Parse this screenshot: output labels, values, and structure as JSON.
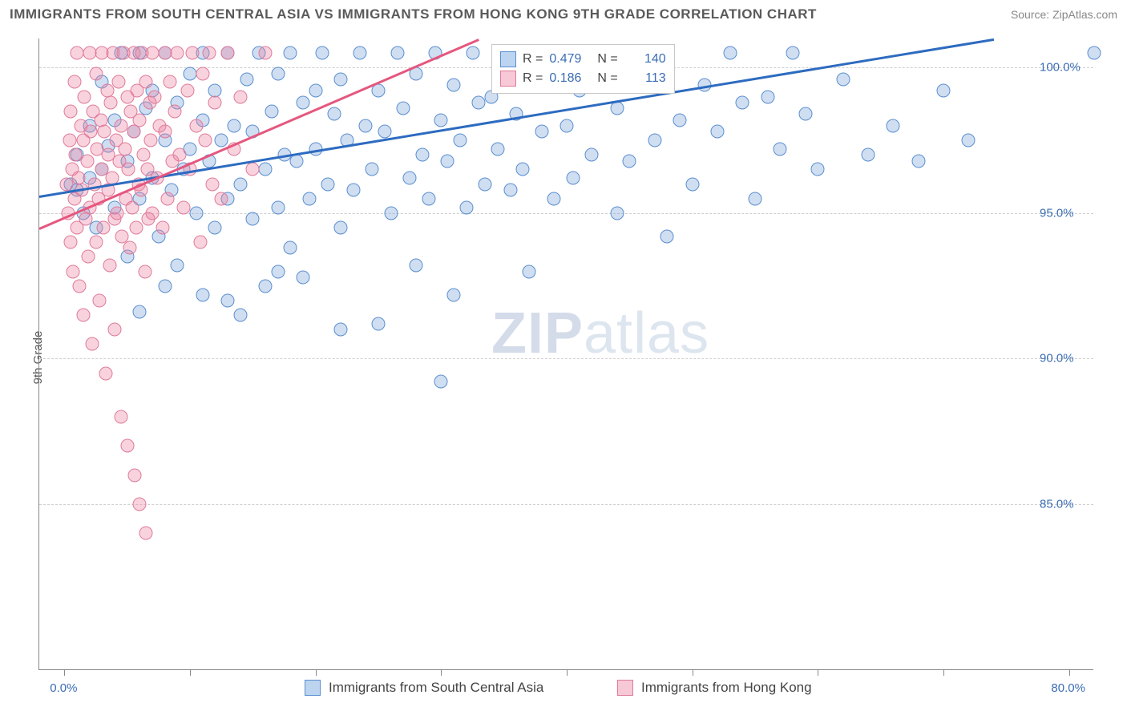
{
  "header": {
    "title": "IMMIGRANTS FROM SOUTH CENTRAL ASIA VS IMMIGRANTS FROM HONG KONG 9TH GRADE CORRELATION CHART",
    "source": "Source: ZipAtlas.com"
  },
  "watermark": {
    "part1": "ZIP",
    "part2": "atlas"
  },
  "chart": {
    "type": "scatter",
    "ylabel": "9th Grade",
    "background_color": "#ffffff",
    "grid_color": "#cfcfcf",
    "axis_color": "#888888",
    "tick_label_color": "#3b6db4",
    "label_color": "#5a5a5a",
    "label_fontsize": 15,
    "tick_fontsize": 15,
    "marker_radius": 8.5,
    "marker_opacity": 0.55,
    "trend_line_width": 3,
    "xlim": [
      -2,
      82
    ],
    "ylim": [
      79.3,
      101
    ],
    "xticks": [
      0,
      10,
      20,
      30,
      40,
      50,
      60,
      70,
      80
    ],
    "xtick_labels": {
      "0": "0.0%",
      "80": "80.0%"
    },
    "yticks": [
      85,
      90,
      95,
      100
    ],
    "ytick_labels": {
      "85": "85.0%",
      "90": "90.0%",
      "95": "95.0%",
      "100": "100.0%"
    },
    "series": [
      {
        "name": "Immigrants from South Central Asia",
        "marker_fill": "rgba(120,160,215,0.35)",
        "marker_stroke": "#5a8fd0",
        "trend_color": "#2d6bc0",
        "legend_swatch_fill": "#bcd4ef",
        "legend_swatch_stroke": "#5a8fd0",
        "R": "0.479",
        "N": "140",
        "trend": {
          "x1": -2,
          "y1": 95.6,
          "x2": 74,
          "y2": 101
        },
        "points": [
          [
            0.5,
            96
          ],
          [
            1,
            95.8
          ],
          [
            1,
            97
          ],
          [
            1.5,
            95
          ],
          [
            2,
            96.2
          ],
          [
            2,
            98
          ],
          [
            2.5,
            94.5
          ],
          [
            3,
            96.5
          ],
          [
            3,
            99.5
          ],
          [
            3.5,
            97.3
          ],
          [
            4,
            95.2
          ],
          [
            4,
            98.2
          ],
          [
            4.5,
            100.5
          ],
          [
            5,
            96.8
          ],
          [
            5,
            93.5
          ],
          [
            5.5,
            97.8
          ],
          [
            6,
            100.5
          ],
          [
            6,
            95.5
          ],
          [
            6.5,
            98.6
          ],
          [
            7,
            96.2
          ],
          [
            7,
            99.2
          ],
          [
            7.5,
            94.2
          ],
          [
            8,
            97.5
          ],
          [
            8,
            100.5
          ],
          [
            8.5,
            95.8
          ],
          [
            9,
            98.8
          ],
          [
            9,
            93.2
          ],
          [
            9.5,
            96.5
          ],
          [
            10,
            99.8
          ],
          [
            10,
            97.2
          ],
          [
            10.5,
            95.0
          ],
          [
            11,
            98.2
          ],
          [
            11,
            100.5
          ],
          [
            11.5,
            96.8
          ],
          [
            12,
            94.5
          ],
          [
            12,
            99.2
          ],
          [
            12.5,
            97.5
          ],
          [
            13,
            95.5
          ],
          [
            13,
            100.5
          ],
          [
            13.5,
            98.0
          ],
          [
            14,
            96.0
          ],
          [
            14,
            91.5
          ],
          [
            14.5,
            99.6
          ],
          [
            15,
            97.8
          ],
          [
            15,
            94.8
          ],
          [
            15.5,
            100.5
          ],
          [
            16,
            96.5
          ],
          [
            16.5,
            98.5
          ],
          [
            17,
            95.2
          ],
          [
            17,
            99.8
          ],
          [
            17.5,
            97.0
          ],
          [
            18,
            100.5
          ],
          [
            18,
            93.8
          ],
          [
            18.5,
            96.8
          ],
          [
            19,
            98.8
          ],
          [
            19.5,
            95.5
          ],
          [
            20,
            99.2
          ],
          [
            20,
            97.2
          ],
          [
            20.5,
            100.5
          ],
          [
            21,
            96.0
          ],
          [
            21.5,
            98.4
          ],
          [
            22,
            94.5
          ],
          [
            22,
            99.6
          ],
          [
            22.5,
            97.5
          ],
          [
            23,
            95.8
          ],
          [
            23.5,
            100.5
          ],
          [
            24,
            98.0
          ],
          [
            24.5,
            96.5
          ],
          [
            25,
            99.2
          ],
          [
            25,
            91.2
          ],
          [
            25.5,
            97.8
          ],
          [
            26,
            95.0
          ],
          [
            26.5,
            100.5
          ],
          [
            27,
            98.6
          ],
          [
            27.5,
            96.2
          ],
          [
            28,
            99.8
          ],
          [
            28,
            93.2
          ],
          [
            28.5,
            97.0
          ],
          [
            29,
            95.5
          ],
          [
            29.5,
            100.5
          ],
          [
            30,
            98.2
          ],
          [
            30,
            89.2
          ],
          [
            30.5,
            96.8
          ],
          [
            31,
            99.4
          ],
          [
            31.5,
            97.5
          ],
          [
            32,
            95.2
          ],
          [
            32.5,
            100.5
          ],
          [
            33,
            98.8
          ],
          [
            33.5,
            96.0
          ],
          [
            34,
            99.0
          ],
          [
            34.5,
            97.2
          ],
          [
            35,
            100.5
          ],
          [
            35.5,
            95.8
          ],
          [
            36,
            98.4
          ],
          [
            36.5,
            96.5
          ],
          [
            37,
            99.6
          ],
          [
            38,
            97.8
          ],
          [
            38.5,
            100.5
          ],
          [
            39,
            95.5
          ],
          [
            40,
            98.0
          ],
          [
            40.5,
            96.2
          ],
          [
            41,
            99.2
          ],
          [
            42,
            97.0
          ],
          [
            43,
            100.5
          ],
          [
            44,
            98.6
          ],
          [
            44,
            95.0
          ],
          [
            45,
            96.8
          ],
          [
            46,
            99.8
          ],
          [
            47,
            97.5
          ],
          [
            48,
            94.2
          ],
          [
            48,
            100.5
          ],
          [
            49,
            98.2
          ],
          [
            50,
            96.0
          ],
          [
            51,
            99.4
          ],
          [
            52,
            97.8
          ],
          [
            53,
            100.5
          ],
          [
            54,
            98.8
          ],
          [
            55,
            95.5
          ],
          [
            56,
            99.0
          ],
          [
            57,
            97.2
          ],
          [
            58,
            100.5
          ],
          [
            59,
            98.4
          ],
          [
            60,
            96.5
          ],
          [
            62,
            99.6
          ],
          [
            64,
            97.0
          ],
          [
            66,
            98.0
          ],
          [
            68,
            96.8
          ],
          [
            70,
            99.2
          ],
          [
            72,
            97.5
          ],
          [
            82,
            100.5
          ],
          [
            13,
            92.0
          ],
          [
            16,
            92.5
          ],
          [
            19,
            92.8
          ],
          [
            22,
            91.0
          ],
          [
            8,
            92.5
          ],
          [
            6,
            91.6
          ],
          [
            31,
            92.2
          ],
          [
            37,
            93.0
          ],
          [
            11,
            92.2
          ],
          [
            17,
            93.0
          ]
        ]
      },
      {
        "name": "Immigrants from Hong Kong",
        "marker_fill": "rgba(235,130,160,0.35)",
        "marker_stroke": "#e07a9a",
        "trend_color": "#e5577f",
        "legend_swatch_fill": "#f7c9d6",
        "legend_swatch_stroke": "#e07a9a",
        "R": "0.186",
        "N": "113",
        "trend": {
          "x1": -2,
          "y1": 94.5,
          "x2": 33,
          "y2": 101
        },
        "points": [
          [
            0.2,
            96
          ],
          [
            0.3,
            95
          ],
          [
            0.4,
            97.5
          ],
          [
            0.5,
            94
          ],
          [
            0.5,
            98.5
          ],
          [
            0.6,
            96.5
          ],
          [
            0.7,
            93
          ],
          [
            0.8,
            99.5
          ],
          [
            0.8,
            95.5
          ],
          [
            0.9,
            97
          ],
          [
            1.0,
            94.5
          ],
          [
            1.0,
            100.5
          ],
          [
            1.1,
            96.2
          ],
          [
            1.2,
            92.5
          ],
          [
            1.3,
            98
          ],
          [
            1.4,
            95.8
          ],
          [
            1.5,
            97.5
          ],
          [
            1.5,
            91.5
          ],
          [
            1.6,
            99
          ],
          [
            1.7,
            94.8
          ],
          [
            1.8,
            96.8
          ],
          [
            1.9,
            93.5
          ],
          [
            2.0,
            100.5
          ],
          [
            2.0,
            95.2
          ],
          [
            2.1,
            97.8
          ],
          [
            2.2,
            90.5
          ],
          [
            2.3,
            98.5
          ],
          [
            2.4,
            96.0
          ],
          [
            2.5,
            94.0
          ],
          [
            2.5,
            99.8
          ],
          [
            2.6,
            97.2
          ],
          [
            2.7,
            95.5
          ],
          [
            2.8,
            92.0
          ],
          [
            2.9,
            98.2
          ],
          [
            3.0,
            96.5
          ],
          [
            3.0,
            100.5
          ],
          [
            3.1,
            94.5
          ],
          [
            3.2,
            97.8
          ],
          [
            3.3,
            89.5
          ],
          [
            3.4,
            99.2
          ],
          [
            3.5,
            95.8
          ],
          [
            3.5,
            97.0
          ],
          [
            3.6,
            93.2
          ],
          [
            3.7,
            98.8
          ],
          [
            3.8,
            96.2
          ],
          [
            3.9,
            100.5
          ],
          [
            4.0,
            94.8
          ],
          [
            4.0,
            91.0
          ],
          [
            4.1,
            97.5
          ],
          [
            4.2,
            95.0
          ],
          [
            4.3,
            99.5
          ],
          [
            4.4,
            96.8
          ],
          [
            4.5,
            88.0
          ],
          [
            4.5,
            98.0
          ],
          [
            4.6,
            94.2
          ],
          [
            4.7,
            100.5
          ],
          [
            4.8,
            97.2
          ],
          [
            4.9,
            95.5
          ],
          [
            5.0,
            87.0
          ],
          [
            5.0,
            99.0
          ],
          [
            5.1,
            96.5
          ],
          [
            5.2,
            93.8
          ],
          [
            5.3,
            98.5
          ],
          [
            5.4,
            95.2
          ],
          [
            5.5,
            100.5
          ],
          [
            5.5,
            97.8
          ],
          [
            5.6,
            86.0
          ],
          [
            5.7,
            94.5
          ],
          [
            5.8,
            99.2
          ],
          [
            5.9,
            96.0
          ],
          [
            6.0,
            85.0
          ],
          [
            6.0,
            98.2
          ],
          [
            6.1,
            95.8
          ],
          [
            6.2,
            100.5
          ],
          [
            6.3,
            97.0
          ],
          [
            6.4,
            93.0
          ],
          [
            6.5,
            99.5
          ],
          [
            6.5,
            84.0
          ],
          [
            6.6,
            96.5
          ],
          [
            6.7,
            94.8
          ],
          [
            6.8,
            98.8
          ],
          [
            6.9,
            97.5
          ],
          [
            7.0,
            95.0
          ],
          [
            7.0,
            100.5
          ],
          [
            7.2,
            99.0
          ],
          [
            7.4,
            96.2
          ],
          [
            7.6,
            98.0
          ],
          [
            7.8,
            94.5
          ],
          [
            8.0,
            100.5
          ],
          [
            8.0,
            97.8
          ],
          [
            8.2,
            95.5
          ],
          [
            8.4,
            99.5
          ],
          [
            8.6,
            96.8
          ],
          [
            8.8,
            98.5
          ],
          [
            9.0,
            100.5
          ],
          [
            9.2,
            97.0
          ],
          [
            9.5,
            95.2
          ],
          [
            9.8,
            99.2
          ],
          [
            10.0,
            96.5
          ],
          [
            10.2,
            100.5
          ],
          [
            10.5,
            98.0
          ],
          [
            10.8,
            94.0
          ],
          [
            11.0,
            99.8
          ],
          [
            11.2,
            97.5
          ],
          [
            11.5,
            100.5
          ],
          [
            11.8,
            96.0
          ],
          [
            12.0,
            98.8
          ],
          [
            12.5,
            95.5
          ],
          [
            13.0,
            100.5
          ],
          [
            13.5,
            97.2
          ],
          [
            14.0,
            99.0
          ],
          [
            15.0,
            96.5
          ],
          [
            16.0,
            100.5
          ]
        ]
      }
    ],
    "legend_top": {
      "rows": [
        {
          "swatch_series": 0,
          "r_label": "R =",
          "r_value": "0.479",
          "n_label": "N =",
          "n_value": "140"
        },
        {
          "swatch_series": 1,
          "r_label": "R =",
          "r_value": "0.186",
          "n_label": "N =",
          "n_value": "113"
        }
      ]
    }
  }
}
